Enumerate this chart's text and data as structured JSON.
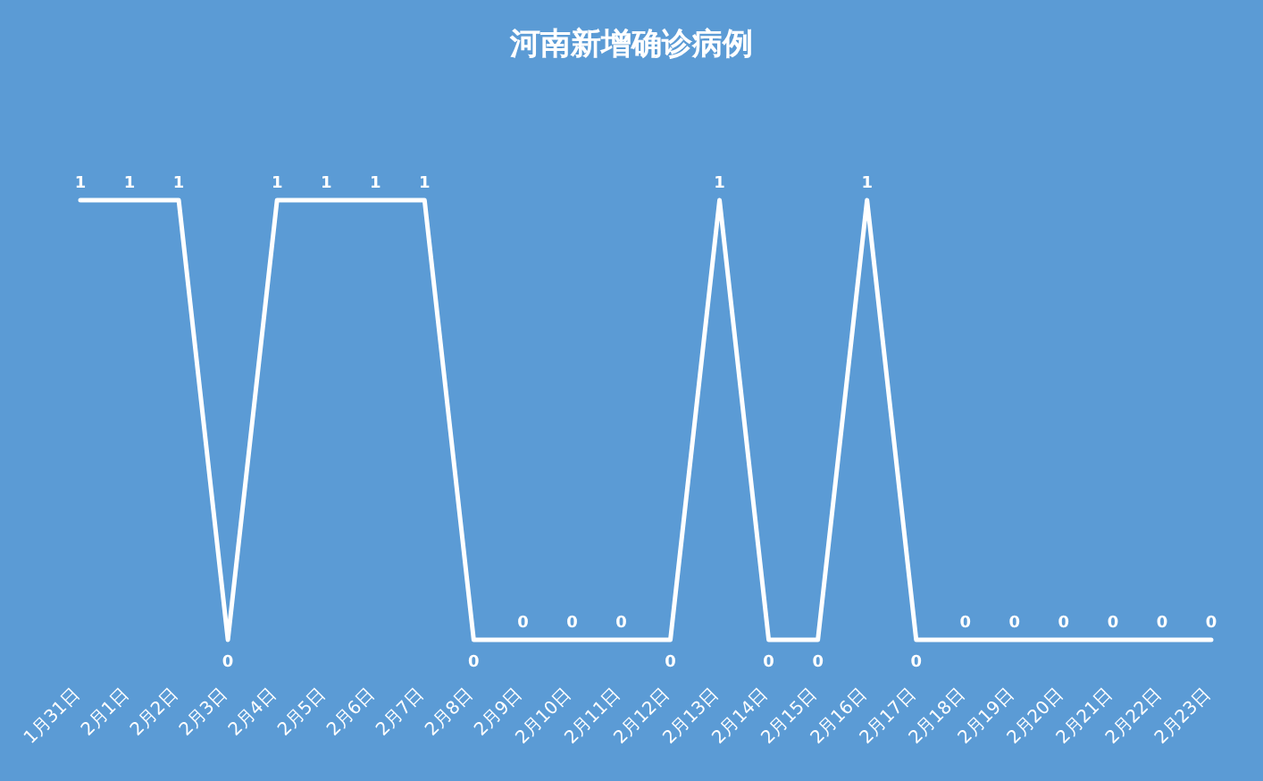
{
  "chart_data": {
    "type": "line",
    "title": "河南新增确诊病例",
    "categories": [
      "1月31日",
      "2月1日",
      "2月2日",
      "2月3日",
      "2月4日",
      "2月5日",
      "2月6日",
      "2月7日",
      "2月8日",
      "2月9日",
      "2月10日",
      "2月11日",
      "2月12日",
      "2月13日",
      "2月14日",
      "2月15日",
      "2月16日",
      "2月17日",
      "2月18日",
      "2月19日",
      "2月20日",
      "2月21日",
      "2月22日",
      "2月23日"
    ],
    "values": [
      1,
      1,
      1,
      0,
      1,
      1,
      1,
      1,
      0,
      0,
      0,
      0,
      0,
      1,
      0,
      0,
      1,
      0,
      0,
      0,
      0,
      0,
      0,
      0
    ],
    "color": "#ffffff",
    "data_labels": true
  }
}
